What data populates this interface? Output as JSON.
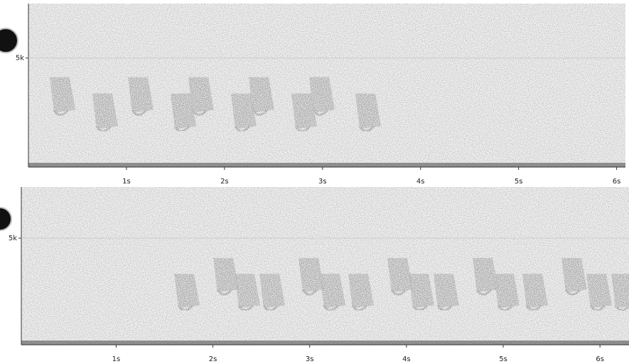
{
  "chart_data": [
    {
      "type": "spectrogram",
      "xlim": [
        0,
        6.09
      ],
      "ylim": [
        0,
        7500
      ],
      "xticks": [
        {
          "value": 1,
          "label": "1s"
        },
        {
          "value": 2,
          "label": "2s"
        },
        {
          "value": 3,
          "label": "3s"
        },
        {
          "value": 4,
          "label": "4s"
        },
        {
          "value": 5,
          "label": "5s"
        },
        {
          "value": 6,
          "label": "6s"
        }
      ],
      "yticks": [
        {
          "value": 5000,
          "label": "5k"
        }
      ]
    },
    {
      "type": "spectrogram",
      "xlim": [
        0.02,
        6.3
      ],
      "ylim": [
        0,
        7400
      ],
      "xticks": [
        {
          "value": 1,
          "label": "1s"
        },
        {
          "value": 2,
          "label": "2s"
        },
        {
          "value": 3,
          "label": "3s"
        },
        {
          "value": 4,
          "label": "4s"
        },
        {
          "value": 5,
          "label": "5s"
        },
        {
          "value": 6,
          "label": "6s"
        }
      ],
      "yticks": [
        {
          "value": 5000,
          "label": "5k"
        }
      ]
    }
  ]
}
